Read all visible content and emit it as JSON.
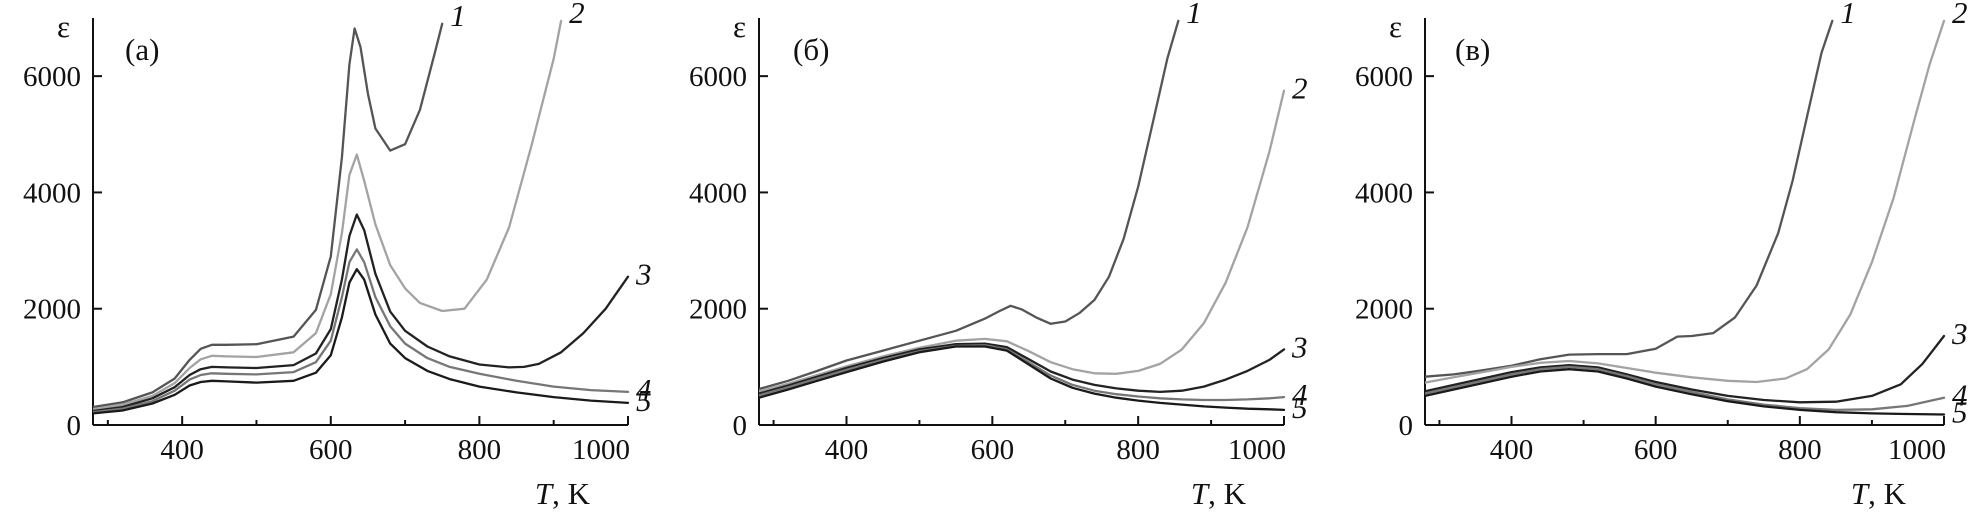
{
  "chart_data": [
    {
      "type": "line",
      "panel_label": "(а)",
      "ylabel": "ε",
      "xlabel_italic": "T",
      "xlabel_unit": ", K",
      "xlim": [
        280,
        1000
      ],
      "ylim": [
        0,
        7000
      ],
      "xticks": [
        400,
        600,
        800,
        1000
      ],
      "yticks": [
        0,
        2000,
        4000,
        6000
      ],
      "grid": false,
      "series": [
        {
          "name": "1",
          "color": "#555555",
          "x": [
            280,
            320,
            360,
            390,
            410,
            425,
            440,
            460,
            500,
            550,
            580,
            600,
            615,
            625,
            632,
            640,
            650,
            660,
            680,
            700,
            720,
            740,
            750
          ],
          "y": [
            310,
            390,
            560,
            800,
            1120,
            1310,
            1380,
            1380,
            1390,
            1520,
            1980,
            2900,
            4600,
            6200,
            6820,
            6500,
            5700,
            5100,
            4720,
            4830,
            5420,
            6400,
            6900
          ]
        },
        {
          "name": "2",
          "color": "#a3a3a3",
          "x": [
            280,
            320,
            360,
            390,
            410,
            425,
            440,
            460,
            500,
            550,
            580,
            600,
            615,
            625,
            635,
            645,
            660,
            680,
            700,
            720,
            750,
            780,
            810,
            840,
            870,
            900,
            910
          ],
          "y": [
            270,
            350,
            500,
            720,
            980,
            1130,
            1190,
            1180,
            1170,
            1250,
            1580,
            2250,
            3300,
            4300,
            4650,
            4200,
            3450,
            2750,
            2350,
            2100,
            1960,
            2000,
            2500,
            3400,
            4800,
            6300,
            6950
          ]
        },
        {
          "name": "3",
          "color": "#222222",
          "x": [
            280,
            320,
            360,
            390,
            410,
            425,
            440,
            460,
            500,
            550,
            580,
            600,
            615,
            625,
            635,
            645,
            660,
            680,
            700,
            730,
            760,
            800,
            840,
            860,
            880,
            910,
            940,
            970,
            1000
          ],
          "y": [
            240,
            310,
            460,
            650,
            860,
            960,
            1000,
            990,
            980,
            1030,
            1230,
            1650,
            2500,
            3250,
            3620,
            3350,
            2600,
            1950,
            1620,
            1350,
            1180,
            1040,
            990,
            1000,
            1050,
            1250,
            1580,
            2000,
            2550
          ]
        },
        {
          "name": "4",
          "color": "#777777",
          "x": [
            280,
            320,
            360,
            390,
            410,
            425,
            440,
            460,
            500,
            550,
            580,
            600,
            615,
            625,
            635,
            645,
            660,
            680,
            700,
            730,
            760,
            800,
            850,
            900,
            950,
            1000
          ],
          "y": [
            220,
            280,
            410,
            590,
            780,
            860,
            890,
            880,
            870,
            910,
            1080,
            1450,
            2200,
            2800,
            3020,
            2800,
            2200,
            1700,
            1400,
            1150,
            1000,
            880,
            760,
            660,
            600,
            570
          ]
        },
        {
          "name": "5",
          "color": "#1a1a1a",
          "x": [
            280,
            320,
            360,
            390,
            410,
            425,
            440,
            460,
            500,
            550,
            580,
            600,
            615,
            625,
            635,
            645,
            660,
            680,
            700,
            730,
            760,
            800,
            850,
            900,
            950,
            1000
          ],
          "y": [
            200,
            250,
            370,
            520,
            680,
            740,
            760,
            750,
            730,
            760,
            900,
            1200,
            1850,
            2450,
            2680,
            2500,
            1900,
            1400,
            1150,
            930,
            790,
            660,
            560,
            480,
            420,
            380
          ]
        }
      ]
    },
    {
      "type": "line",
      "panel_label": "(б)",
      "ylabel": "ε",
      "xlabel_italic": "T",
      "xlabel_unit": ", K",
      "xlim": [
        280,
        1000
      ],
      "ylim": [
        0,
        7000
      ],
      "xticks": [
        400,
        600,
        800,
        1000
      ],
      "yticks": [
        0,
        2000,
        4000,
        6000
      ],
      "grid": false,
      "series": [
        {
          "name": "1",
          "color": "#555555",
          "x": [
            280,
            320,
            360,
            400,
            450,
            500,
            550,
            590,
            610,
            625,
            640,
            660,
            680,
            700,
            720,
            740,
            760,
            780,
            800,
            820,
            840,
            855
          ],
          "y": [
            620,
            760,
            930,
            1110,
            1280,
            1450,
            1620,
            1830,
            1960,
            2050,
            1990,
            1850,
            1740,
            1780,
            1930,
            2150,
            2550,
            3200,
            4100,
            5200,
            6300,
            6950
          ]
        },
        {
          "name": "2",
          "color": "#a3a3a3",
          "x": [
            280,
            320,
            360,
            400,
            450,
            500,
            550,
            590,
            620,
            650,
            680,
            710,
            740,
            770,
            800,
            830,
            860,
            890,
            920,
            950,
            980,
            1000
          ],
          "y": [
            580,
            710,
            860,
            1010,
            1180,
            1330,
            1450,
            1480,
            1440,
            1270,
            1080,
            960,
            890,
            880,
            930,
            1050,
            1300,
            1750,
            2450,
            3400,
            4700,
            5750
          ]
        },
        {
          "name": "3",
          "color": "#222222",
          "x": [
            280,
            320,
            360,
            400,
            450,
            500,
            550,
            590,
            620,
            650,
            680,
            710,
            740,
            770,
            800,
            830,
            860,
            890,
            920,
            950,
            980,
            1000
          ],
          "y": [
            540,
            680,
            830,
            980,
            1150,
            1300,
            1390,
            1400,
            1340,
            1130,
            920,
            780,
            690,
            630,
            590,
            570,
            590,
            660,
            780,
            930,
            1120,
            1300
          ]
        },
        {
          "name": "4",
          "color": "#777777",
          "x": [
            280,
            320,
            360,
            400,
            450,
            500,
            550,
            590,
            620,
            650,
            680,
            710,
            740,
            770,
            800,
            830,
            860,
            890,
            920,
            950,
            980,
            1000
          ],
          "y": [
            510,
            650,
            800,
            950,
            1120,
            1270,
            1360,
            1370,
            1300,
            1080,
            850,
            690,
            590,
            530,
            490,
            460,
            440,
            430,
            430,
            440,
            460,
            480
          ]
        },
        {
          "name": "5",
          "color": "#1a1a1a",
          "x": [
            280,
            320,
            360,
            400,
            450,
            500,
            550,
            590,
            620,
            650,
            680,
            710,
            740,
            770,
            800,
            830,
            860,
            890,
            920,
            950,
            980,
            1000
          ],
          "y": [
            470,
            610,
            760,
            910,
            1090,
            1250,
            1350,
            1350,
            1280,
            1040,
            800,
            640,
            540,
            470,
            420,
            380,
            350,
            320,
            300,
            280,
            270,
            260
          ]
        }
      ]
    },
    {
      "type": "line",
      "panel_label": "(в)",
      "ylabel": "ε",
      "xlabel_italic": "T",
      "xlabel_unit": ", K",
      "xlim": [
        280,
        1000
      ],
      "ylim": [
        0,
        7000
      ],
      "xticks": [
        400,
        600,
        800,
        1000
      ],
      "yticks": [
        0,
        2000,
        4000,
        6000
      ],
      "grid": false,
      "series": [
        {
          "name": "1",
          "color": "#555555",
          "x": [
            280,
            320,
            360,
            400,
            440,
            480,
            520,
            560,
            600,
            630,
            650,
            680,
            710,
            740,
            770,
            790,
            810,
            830,
            845
          ],
          "y": [
            830,
            870,
            940,
            1020,
            1130,
            1210,
            1220,
            1220,
            1310,
            1520,
            1530,
            1580,
            1850,
            2400,
            3300,
            4200,
            5300,
            6400,
            6950
          ]
        },
        {
          "name": "2",
          "color": "#a3a3a3",
          "x": [
            280,
            320,
            360,
            400,
            440,
            480,
            520,
            560,
            600,
            650,
            700,
            740,
            780,
            810,
            840,
            870,
            900,
            930,
            960,
            980,
            1000
          ],
          "y": [
            730,
            820,
            910,
            1000,
            1070,
            1100,
            1060,
            980,
            900,
            820,
            760,
            740,
            800,
            960,
            1300,
            1900,
            2800,
            3900,
            5300,
            6200,
            6950
          ]
        },
        {
          "name": "3",
          "color": "#222222",
          "x": [
            280,
            320,
            360,
            400,
            440,
            480,
            520,
            560,
            600,
            650,
            700,
            750,
            800,
            850,
            900,
            940,
            970,
            1000
          ],
          "y": [
            580,
            690,
            800,
            910,
            990,
            1030,
            990,
            870,
            740,
            610,
            500,
            430,
            390,
            400,
            500,
            700,
            1050,
            1530
          ]
        },
        {
          "name": "4",
          "color": "#777777",
          "x": [
            280,
            320,
            360,
            400,
            440,
            480,
            520,
            560,
            600,
            650,
            700,
            750,
            800,
            850,
            900,
            950,
            1000
          ],
          "y": [
            540,
            650,
            760,
            870,
            960,
            1000,
            960,
            840,
            700,
            570,
            440,
            350,
            290,
            260,
            270,
            330,
            470
          ]
        },
        {
          "name": "5",
          "color": "#1a1a1a",
          "x": [
            280,
            320,
            360,
            400,
            440,
            480,
            520,
            560,
            600,
            650,
            700,
            750,
            800,
            850,
            900,
            950,
            1000
          ],
          "y": [
            500,
            610,
            720,
            830,
            920,
            960,
            920,
            800,
            660,
            530,
            410,
            320,
            260,
            220,
            200,
            190,
            180
          ]
        }
      ]
    }
  ]
}
